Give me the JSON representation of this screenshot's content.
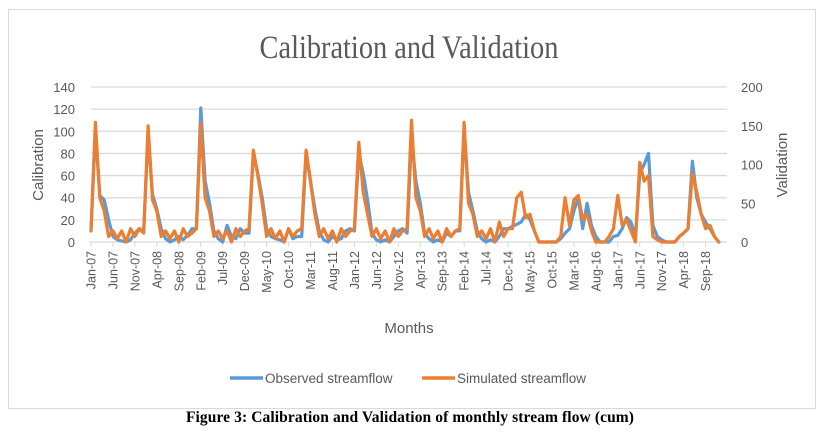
{
  "caption": "Figure 3: Calibration and Validation of monthly stream flow (cum)",
  "chart_data": {
    "type": "line",
    "title": "Calibration and Validation",
    "xlabel": "Months",
    "ylabel": "Calibration",
    "y2label": "Validation",
    "ylim": [
      0,
      140
    ],
    "y2lim": [
      0,
      200
    ],
    "yticks": [
      "0",
      "20",
      "40",
      "60",
      "80",
      "100",
      "120",
      "140"
    ],
    "y2ticks": [
      "0",
      "50",
      "100",
      "150",
      "200"
    ],
    "grid": true,
    "legend": "bottom",
    "x_start": "Jan-07",
    "x_end": "Dec-18",
    "xtick_labels": [
      "Jan-07",
      "Jun-07",
      "Nov-07",
      "Apr-08",
      "Sep-08",
      "Feb-09",
      "Jul-09",
      "Dec-09",
      "May-10",
      "Oct-10",
      "Mar-11",
      "Aug-11",
      "Jan-12",
      "Jun-12",
      "Nov-12",
      "Apr-13",
      "Sep-13",
      "Feb-14",
      "Jul-14",
      "Dec-14",
      "May-15",
      "Oct-15",
      "Mar-16",
      "Aug-16",
      "Jan-17",
      "Jun-17",
      "Nov-17",
      "Apr-18",
      "Sep-18"
    ],
    "colors": {
      "observed": "#5b9bd5",
      "simulated": "#ed7d31"
    },
    "series": [
      {
        "name": "Observed streamflow",
        "values": [
          10,
          100,
          42,
          38,
          20,
          5,
          2,
          1,
          0,
          2,
          8,
          12,
          10,
          98,
          43,
          30,
          12,
          3,
          0,
          2,
          5,
          2,
          6,
          12,
          12,
          121,
          55,
          35,
          10,
          3,
          0,
          15,
          5,
          3,
          12,
          8,
          8,
          80,
          62,
          40,
          12,
          5,
          3,
          2,
          0,
          12,
          3,
          5,
          5,
          80,
          55,
          30,
          10,
          2,
          0,
          5,
          2,
          3,
          10,
          12,
          10,
          80,
          62,
          38,
          8,
          2,
          0,
          2,
          0,
          5,
          10,
          12,
          8,
          95,
          55,
          35,
          8,
          3,
          0,
          2,
          0,
          8,
          5,
          10,
          10,
          102,
          45,
          28,
          10,
          3,
          0,
          2,
          0,
          5,
          12,
          12,
          14,
          16,
          18,
          25,
          20,
          10,
          0,
          0,
          0,
          0,
          0,
          3,
          8,
          12,
          28,
          40,
          12,
          35,
          15,
          5,
          0,
          0,
          0,
          5,
          6,
          12,
          22,
          18,
          5,
          62,
          70,
          80,
          15,
          5,
          2,
          0,
          0,
          0,
          5,
          8,
          12,
          73,
          40,
          25,
          18,
          12,
          5,
          0
        ]
      },
      {
        "name": "Simulated streamflow",
        "values": [
          10,
          108,
          40,
          28,
          5,
          10,
          3,
          10,
          0,
          12,
          5,
          12,
          8,
          105,
          38,
          28,
          5,
          10,
          3,
          10,
          0,
          12,
          5,
          8,
          12,
          107,
          40,
          28,
          5,
          10,
          3,
          10,
          0,
          12,
          5,
          10,
          12,
          83,
          60,
          35,
          5,
          12,
          3,
          10,
          0,
          12,
          5,
          10,
          12,
          83,
          55,
          25,
          5,
          12,
          3,
          10,
          0,
          12,
          5,
          10,
          12,
          90,
          45,
          25,
          5,
          12,
          3,
          10,
          0,
          12,
          5,
          10,
          12,
          110,
          40,
          28,
          5,
          12,
          3,
          10,
          0,
          12,
          5,
          10,
          12,
          108,
          35,
          25,
          5,
          10,
          3,
          12,
          0,
          18,
          5,
          12,
          12,
          40,
          45,
          22,
          25,
          10,
          0,
          0,
          0,
          0,
          0,
          5,
          40,
          15,
          38,
          42,
          20,
          25,
          10,
          0,
          0,
          0,
          5,
          12,
          42,
          15,
          20,
          10,
          0,
          72,
          55,
          60,
          5,
          2,
          0,
          0,
          0,
          0,
          5,
          8,
          12,
          62,
          45,
          25,
          12,
          15,
          5,
          0
        ]
      }
    ]
  }
}
